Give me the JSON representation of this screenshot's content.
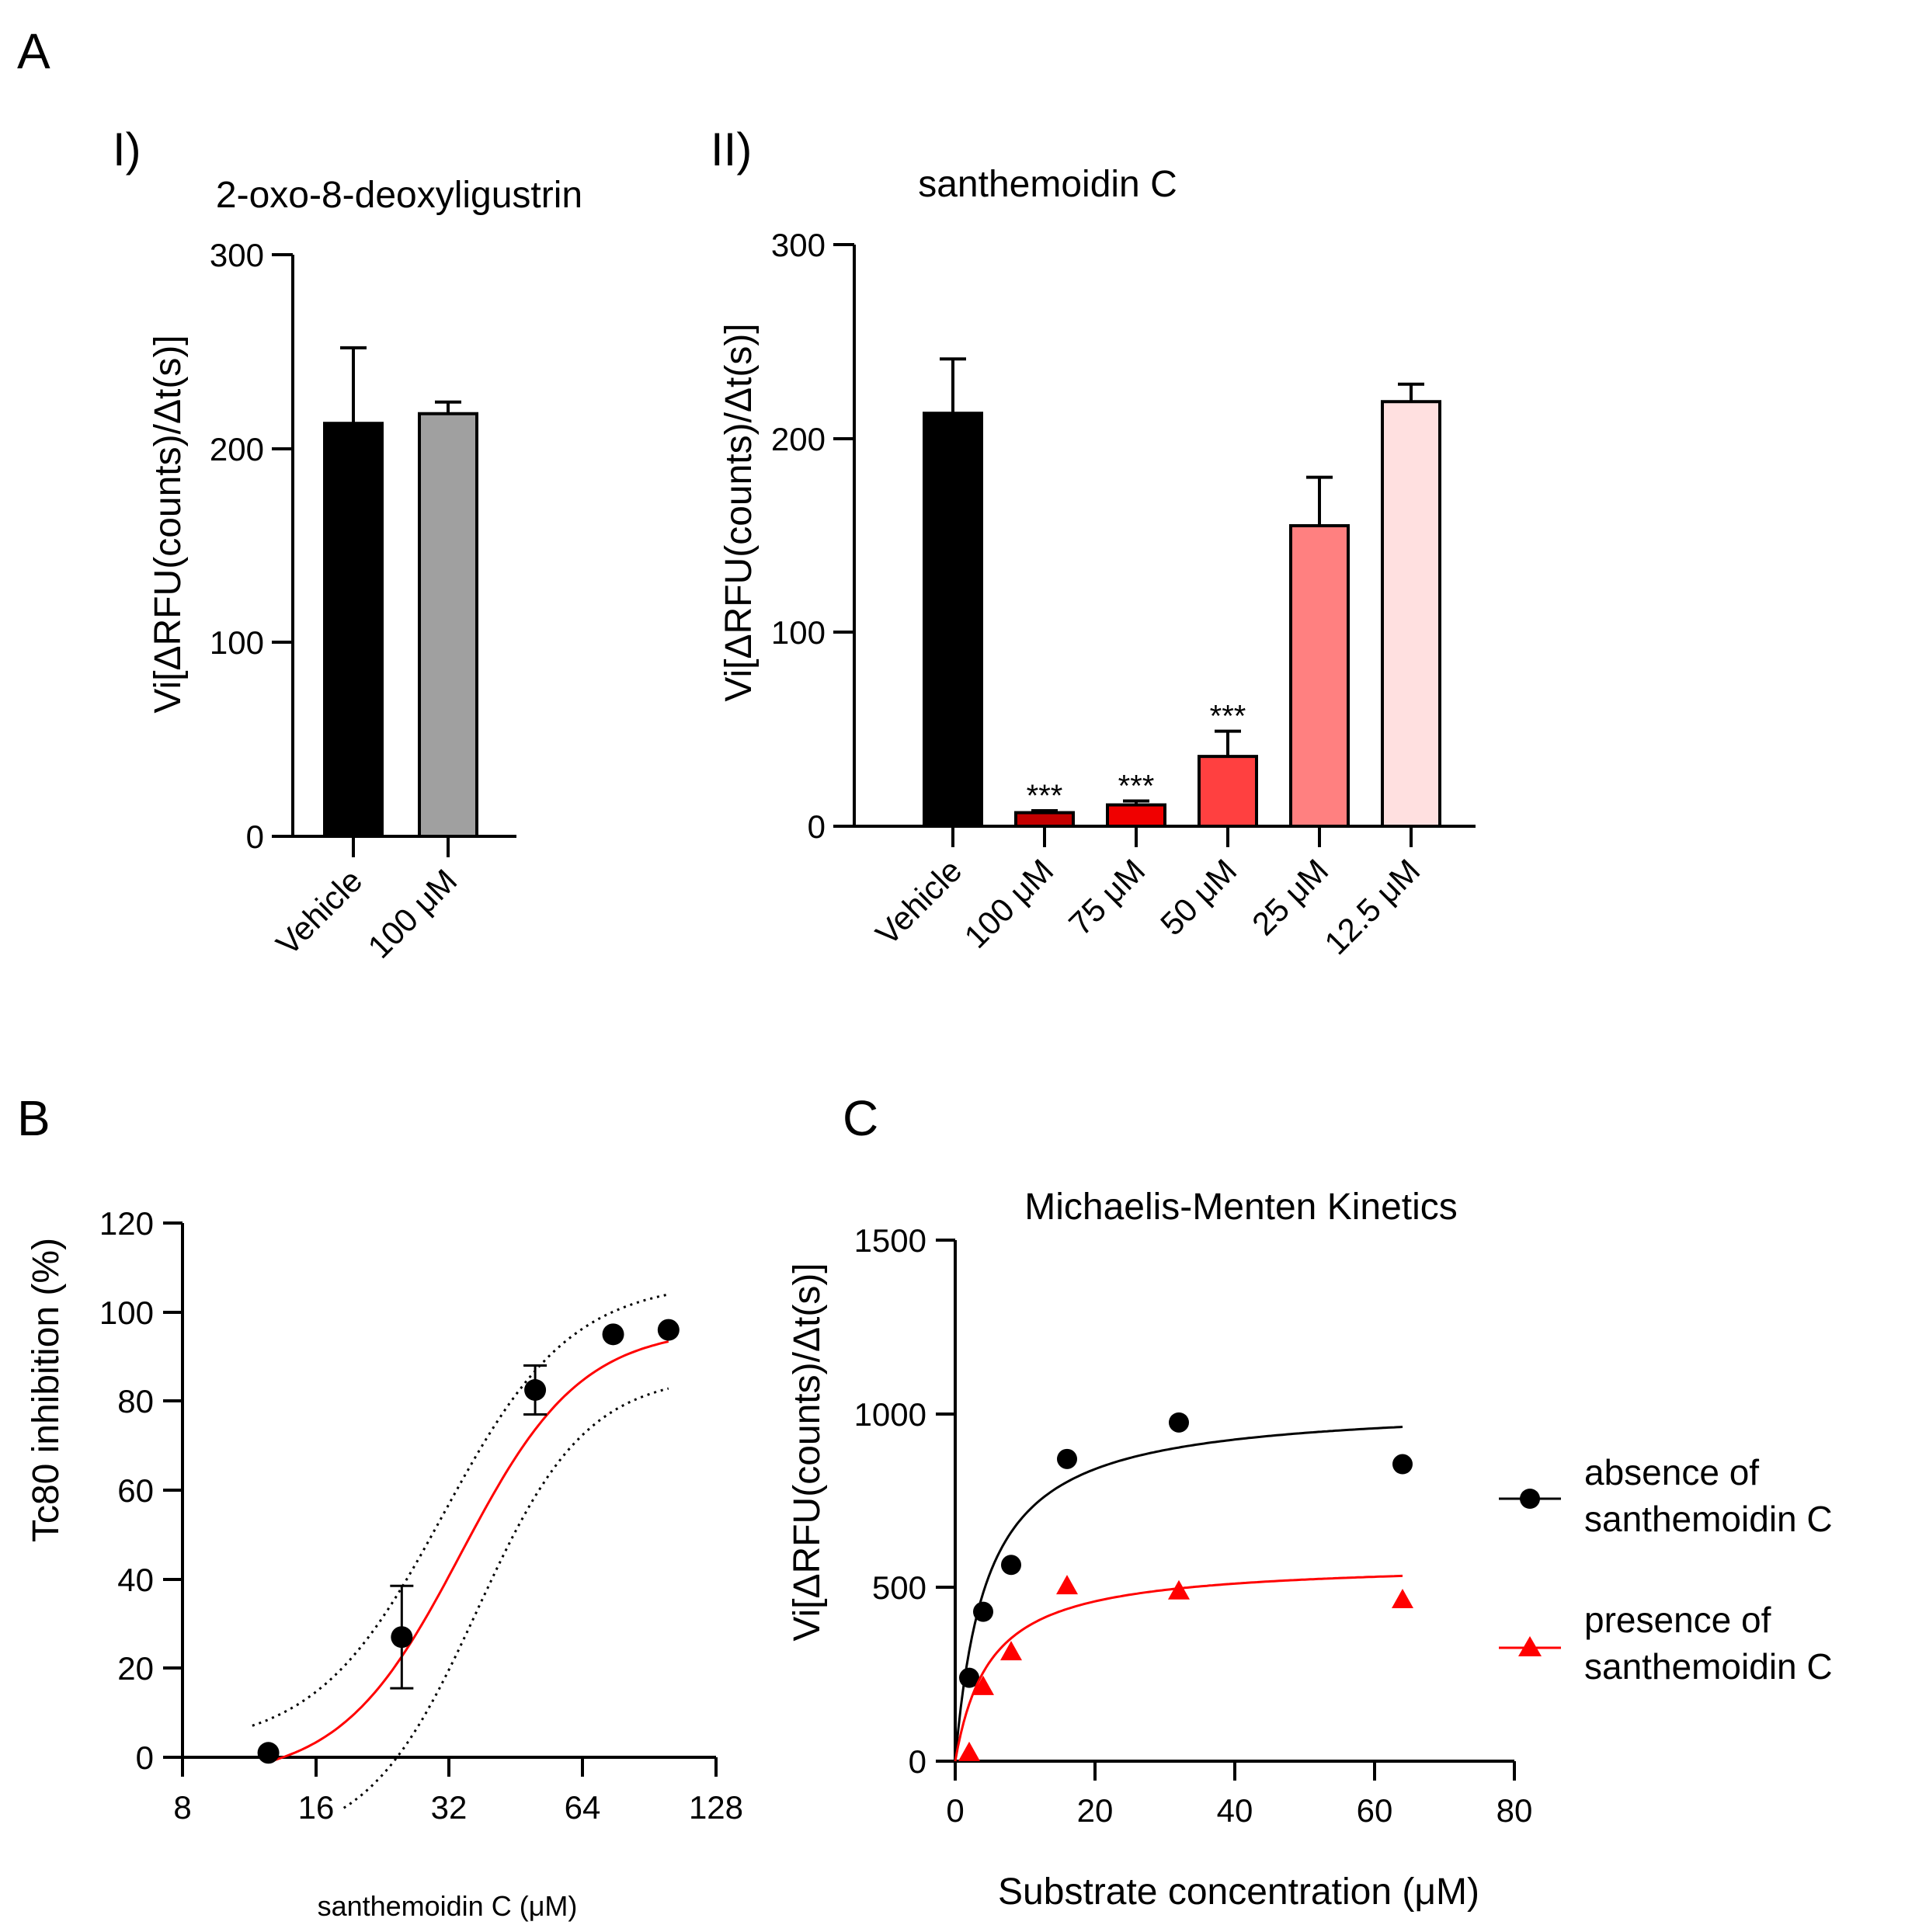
{
  "panels": {
    "A": {
      "letter": "A",
      "I": {
        "label": "I)",
        "title": "2-oxo-8-deoxyligustrin",
        "ylabel": "Vi[ΔRFU(counts)/Δt(s)]",
        "yticks": [
          "300",
          "200",
          "100",
          "0"
        ]
      },
      "II": {
        "label": "II)",
        "title": "santhemoidin C",
        "ylabel": "Vi[ΔRFU(counts)/Δt(s)]",
        "yticks": [
          "300",
          "200",
          "100",
          "0"
        ]
      }
    },
    "B": {
      "letter": "B",
      "ylabel": "Tc80 inhibition (%)",
      "xlabel": "santhemoidin C (μM)",
      "yticks": [
        "120",
        "100",
        "80",
        "60",
        "40",
        "20",
        "0"
      ],
      "xticks": [
        "8",
        "16",
        "32",
        "64",
        "128"
      ]
    },
    "C": {
      "letter": "C",
      "title": "Michaelis-Menten Kinetics",
      "ylabel": "Vi[ΔRFU(counts)/Δt(s)]",
      "xlabel": "Substrate concentration (μM)",
      "yticks": [
        "1500",
        "1000",
        "500",
        "0"
      ],
      "xticks": [
        "0",
        "20",
        "40",
        "60",
        "80"
      ],
      "legend": [
        {
          "line1": "absence of",
          "line2": "santhemoidin C"
        },
        {
          "line1": "presence of",
          "line2": "santhemoidin C"
        }
      ]
    }
  },
  "chart_data": [
    {
      "type": "bar",
      "panel": "A-I",
      "title": "2-oxo-8-deoxyligustrin",
      "ylabel": "Vi[ΔRFU(counts)/Δt(s)]",
      "ylim": [
        0,
        300
      ],
      "categories": [
        "Vehicle",
        "100 μM"
      ],
      "values": [
        213,
        218
      ],
      "errors": [
        39,
        6
      ],
      "colors": [
        "#000000",
        "#a0a0a0"
      ],
      "annotations": [
        "",
        ""
      ]
    },
    {
      "type": "bar",
      "panel": "A-II",
      "title": "santhemoidin C",
      "ylabel": "Vi[ΔRFU(counts)/Δt(s)]",
      "ylim": [
        0,
        300
      ],
      "categories": [
        "Vehicle",
        "100 μM",
        "75 μM",
        "50 μM",
        "25 μM",
        "12.5 μM"
      ],
      "values": [
        213,
        7,
        11,
        36,
        155,
        219
      ],
      "errors": [
        28,
        1,
        2,
        13,
        25,
        9
      ],
      "colors": [
        "#000000",
        "#c40000",
        "#f00000",
        "#ff4040",
        "#ff8080",
        "#ffe0e0"
      ],
      "annotations": [
        "",
        "***",
        "***",
        "***",
        "",
        ""
      ]
    },
    {
      "type": "scatter",
      "panel": "B",
      "xscale": "log2",
      "xlabel": "santhemoidin C (μM)",
      "ylabel": "Tc80 inhibition (%)",
      "xlim": [
        8,
        128
      ],
      "ylim": [
        0,
        120
      ],
      "x": [
        12.5,
        25,
        50,
        75,
        100
      ],
      "y": [
        1,
        27,
        82.5,
        95,
        96
      ],
      "errors": [
        0,
        11.5,
        5.5,
        0,
        0
      ],
      "fit": {
        "type": "sigmoid",
        "bottom": -5,
        "top": 96.5,
        "ic50": 34,
        "hill": 3.2,
        "x_range": [
          12.5,
          100
        ],
        "color": "#ff0000"
      },
      "ci_band": {
        "style": "dotted",
        "upper": {
          "bottom": 2,
          "top": 107,
          "ic50": 31,
          "hill": 3.0,
          "x_range": [
            11.5,
            100
          ]
        },
        "lower": {
          "bottom": -20,
          "top": 86,
          "ic50": 37,
          "hill": 3.5,
          "x_range": [
            18.5,
            100
          ]
        }
      }
    },
    {
      "type": "scatter",
      "panel": "C",
      "title": "Michaelis-Menten Kinetics",
      "xlabel": "Substrate concentration (μM)",
      "ylabel": "Vi[ΔRFU(counts)/Δt(s)]",
      "xlim": [
        0,
        80
      ],
      "ylim": [
        0,
        1500
      ],
      "series": [
        {
          "name": "absence of santhemoidin C",
          "marker": "circle",
          "color": "#000000",
          "x": [
            2,
            4,
            8,
            16,
            32,
            64
          ],
          "y": [
            240,
            430,
            565,
            870,
            975,
            855
          ],
          "fit": {
            "vmax": 1030,
            "km": 4.5,
            "x_range": [
              0,
              64
            ]
          }
        },
        {
          "name": "presence of santhemoidin C",
          "marker": "triangle",
          "color": "#ff0000",
          "x": [
            2,
            4,
            8,
            16,
            32,
            64
          ],
          "y": [
            25,
            215,
            315,
            505,
            490,
            465
          ],
          "fit": {
            "vmax": 575,
            "km": 5,
            "x_range": [
              0,
              64
            ]
          }
        }
      ]
    }
  ]
}
